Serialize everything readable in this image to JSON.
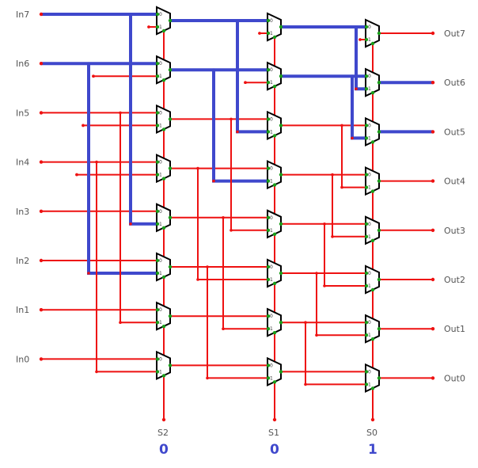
{
  "inputs": [
    {
      "label": "In7",
      "value": 1
    },
    {
      "label": "In6",
      "value": 1
    },
    {
      "label": "In5",
      "value": 0
    },
    {
      "label": "In4",
      "value": 0
    },
    {
      "label": "In3",
      "value": 0
    },
    {
      "label": "In2",
      "value": 0
    },
    {
      "label": "In1",
      "value": 0
    },
    {
      "label": "In0",
      "value": 0
    }
  ],
  "outputs": [
    "Out7",
    "Out6",
    "Out5",
    "Out4",
    "Out3",
    "Out2",
    "Out1",
    "Out0"
  ],
  "selects": [
    {
      "label": "S2",
      "value": "0",
      "shift": 4
    },
    {
      "label": "S1",
      "value": "0",
      "shift": 2
    },
    {
      "label": "S0",
      "value": "1",
      "shift": 1
    }
  ],
  "mux_pins": [
    "0",
    "1"
  ],
  "colors": {
    "high": "#3f48cc",
    "low": "#ee1111",
    "pin": "#1a9e1a",
    "mux": "#000000"
  }
}
